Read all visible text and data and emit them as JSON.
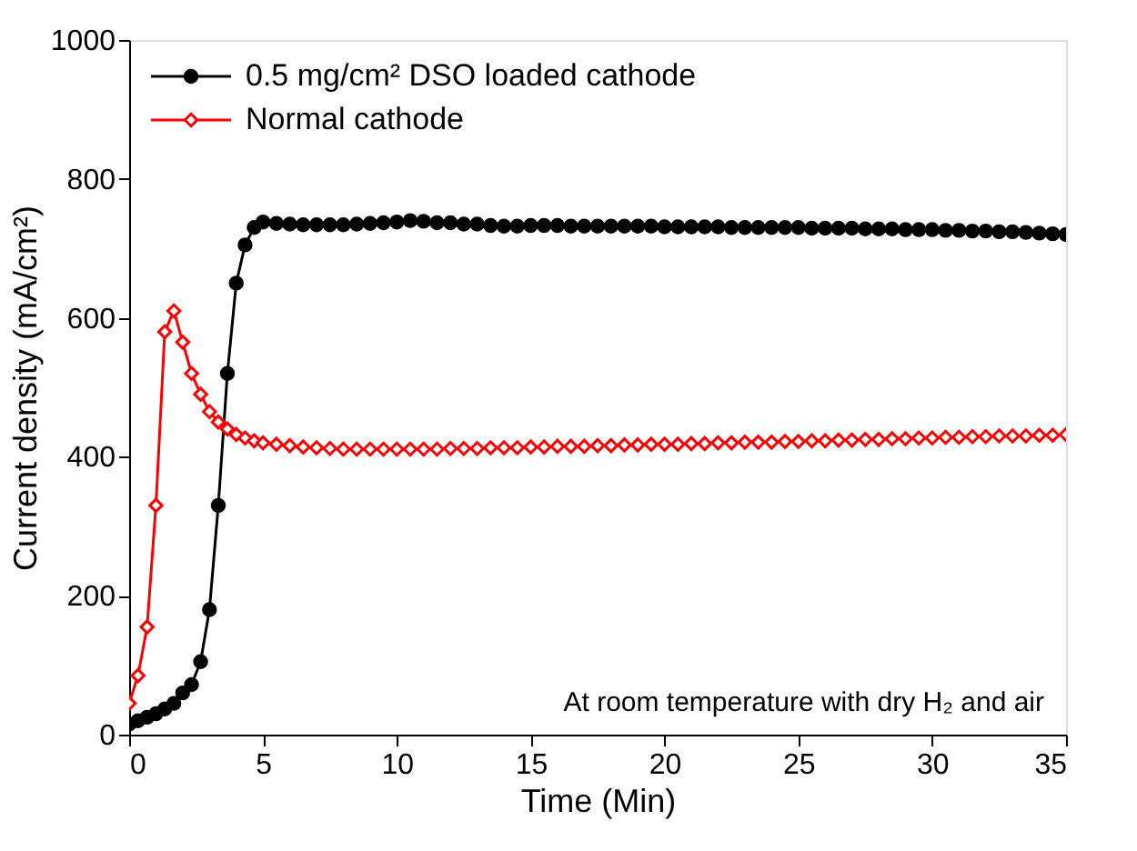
{
  "chart_data": {
    "type": "line",
    "xlabel": "Time (Min)",
    "ylabel": "Current density (mA/cm²)",
    "x": [
      0,
      0.33,
      0.67,
      1,
      1.33,
      1.67,
      2,
      2.33,
      2.67,
      3,
      3.33,
      3.67,
      4,
      4.33,
      4.67,
      5,
      5.5,
      6,
      6.5,
      7,
      7.5,
      8,
      8.5,
      9,
      9.5,
      10,
      10.5,
      11,
      11.5,
      12,
      12.5,
      13,
      13.5,
      14,
      14.5,
      15,
      15.5,
      16,
      16.5,
      17,
      17.5,
      18,
      18.5,
      19,
      19.5,
      20,
      20.5,
      21,
      21.5,
      22,
      22.5,
      23,
      23.5,
      24,
      24.5,
      25,
      25.5,
      26,
      26.5,
      27,
      27.5,
      28,
      28.5,
      29,
      29.5,
      30,
      30.5,
      31,
      31.5,
      32,
      32.5,
      33,
      33.5,
      34,
      34.5,
      35
    ],
    "series": [
      {
        "name": "0.5 mg/cm²  DSO loaded cathode",
        "color": "#000000",
        "marker": "circle",
        "values": [
          15,
          20,
          25,
          30,
          37,
          45,
          60,
          72,
          105,
          180,
          330,
          520,
          650,
          705,
          730,
          738,
          736,
          735,
          734,
          734,
          734,
          734,
          735,
          736,
          737,
          738,
          740,
          739,
          737,
          737,
          735,
          735,
          733,
          732,
          732,
          733,
          733,
          733,
          732,
          732,
          732,
          732,
          732,
          732,
          732,
          731,
          731,
          731,
          731,
          731,
          730,
          730,
          730,
          730,
          730,
          730,
          729,
          729,
          729,
          729,
          728,
          728,
          728,
          727,
          727,
          727,
          726,
          726,
          725,
          725,
          724,
          724,
          723,
          722,
          721,
          720
        ]
      },
      {
        "name": "Normal cathode",
        "color": "#ff0000",
        "marker": "diamond",
        "values": [
          45,
          85,
          155,
          330,
          580,
          610,
          565,
          520,
          490,
          465,
          450,
          440,
          432,
          427,
          423,
          420,
          418,
          416,
          414,
          413,
          412,
          411,
          411,
          411,
          411,
          411,
          411,
          411,
          411,
          412,
          412,
          412,
          413,
          413,
          413,
          414,
          414,
          415,
          415,
          415,
          416,
          416,
          417,
          417,
          418,
          418,
          418,
          419,
          419,
          420,
          420,
          421,
          421,
          421,
          422,
          422,
          423,
          423,
          424,
          424,
          425,
          425,
          426,
          426,
          427,
          427,
          428,
          428,
          429,
          429,
          430,
          430,
          430,
          431,
          431,
          432
        ]
      }
    ],
    "xlim": [
      0,
      35
    ],
    "xticks": [
      0,
      5,
      10,
      15,
      20,
      25,
      30,
      35
    ],
    "ylim": [
      0,
      1000
    ],
    "yticks": [
      0,
      200,
      400,
      600,
      800,
      {
        "value": 1000,
        "label": "1000"
      }
    ],
    "grid": false,
    "legend": "top left",
    "line_style": "solid",
    "annotations": [
      "At room temperature with dry H₂ and air"
    ]
  }
}
